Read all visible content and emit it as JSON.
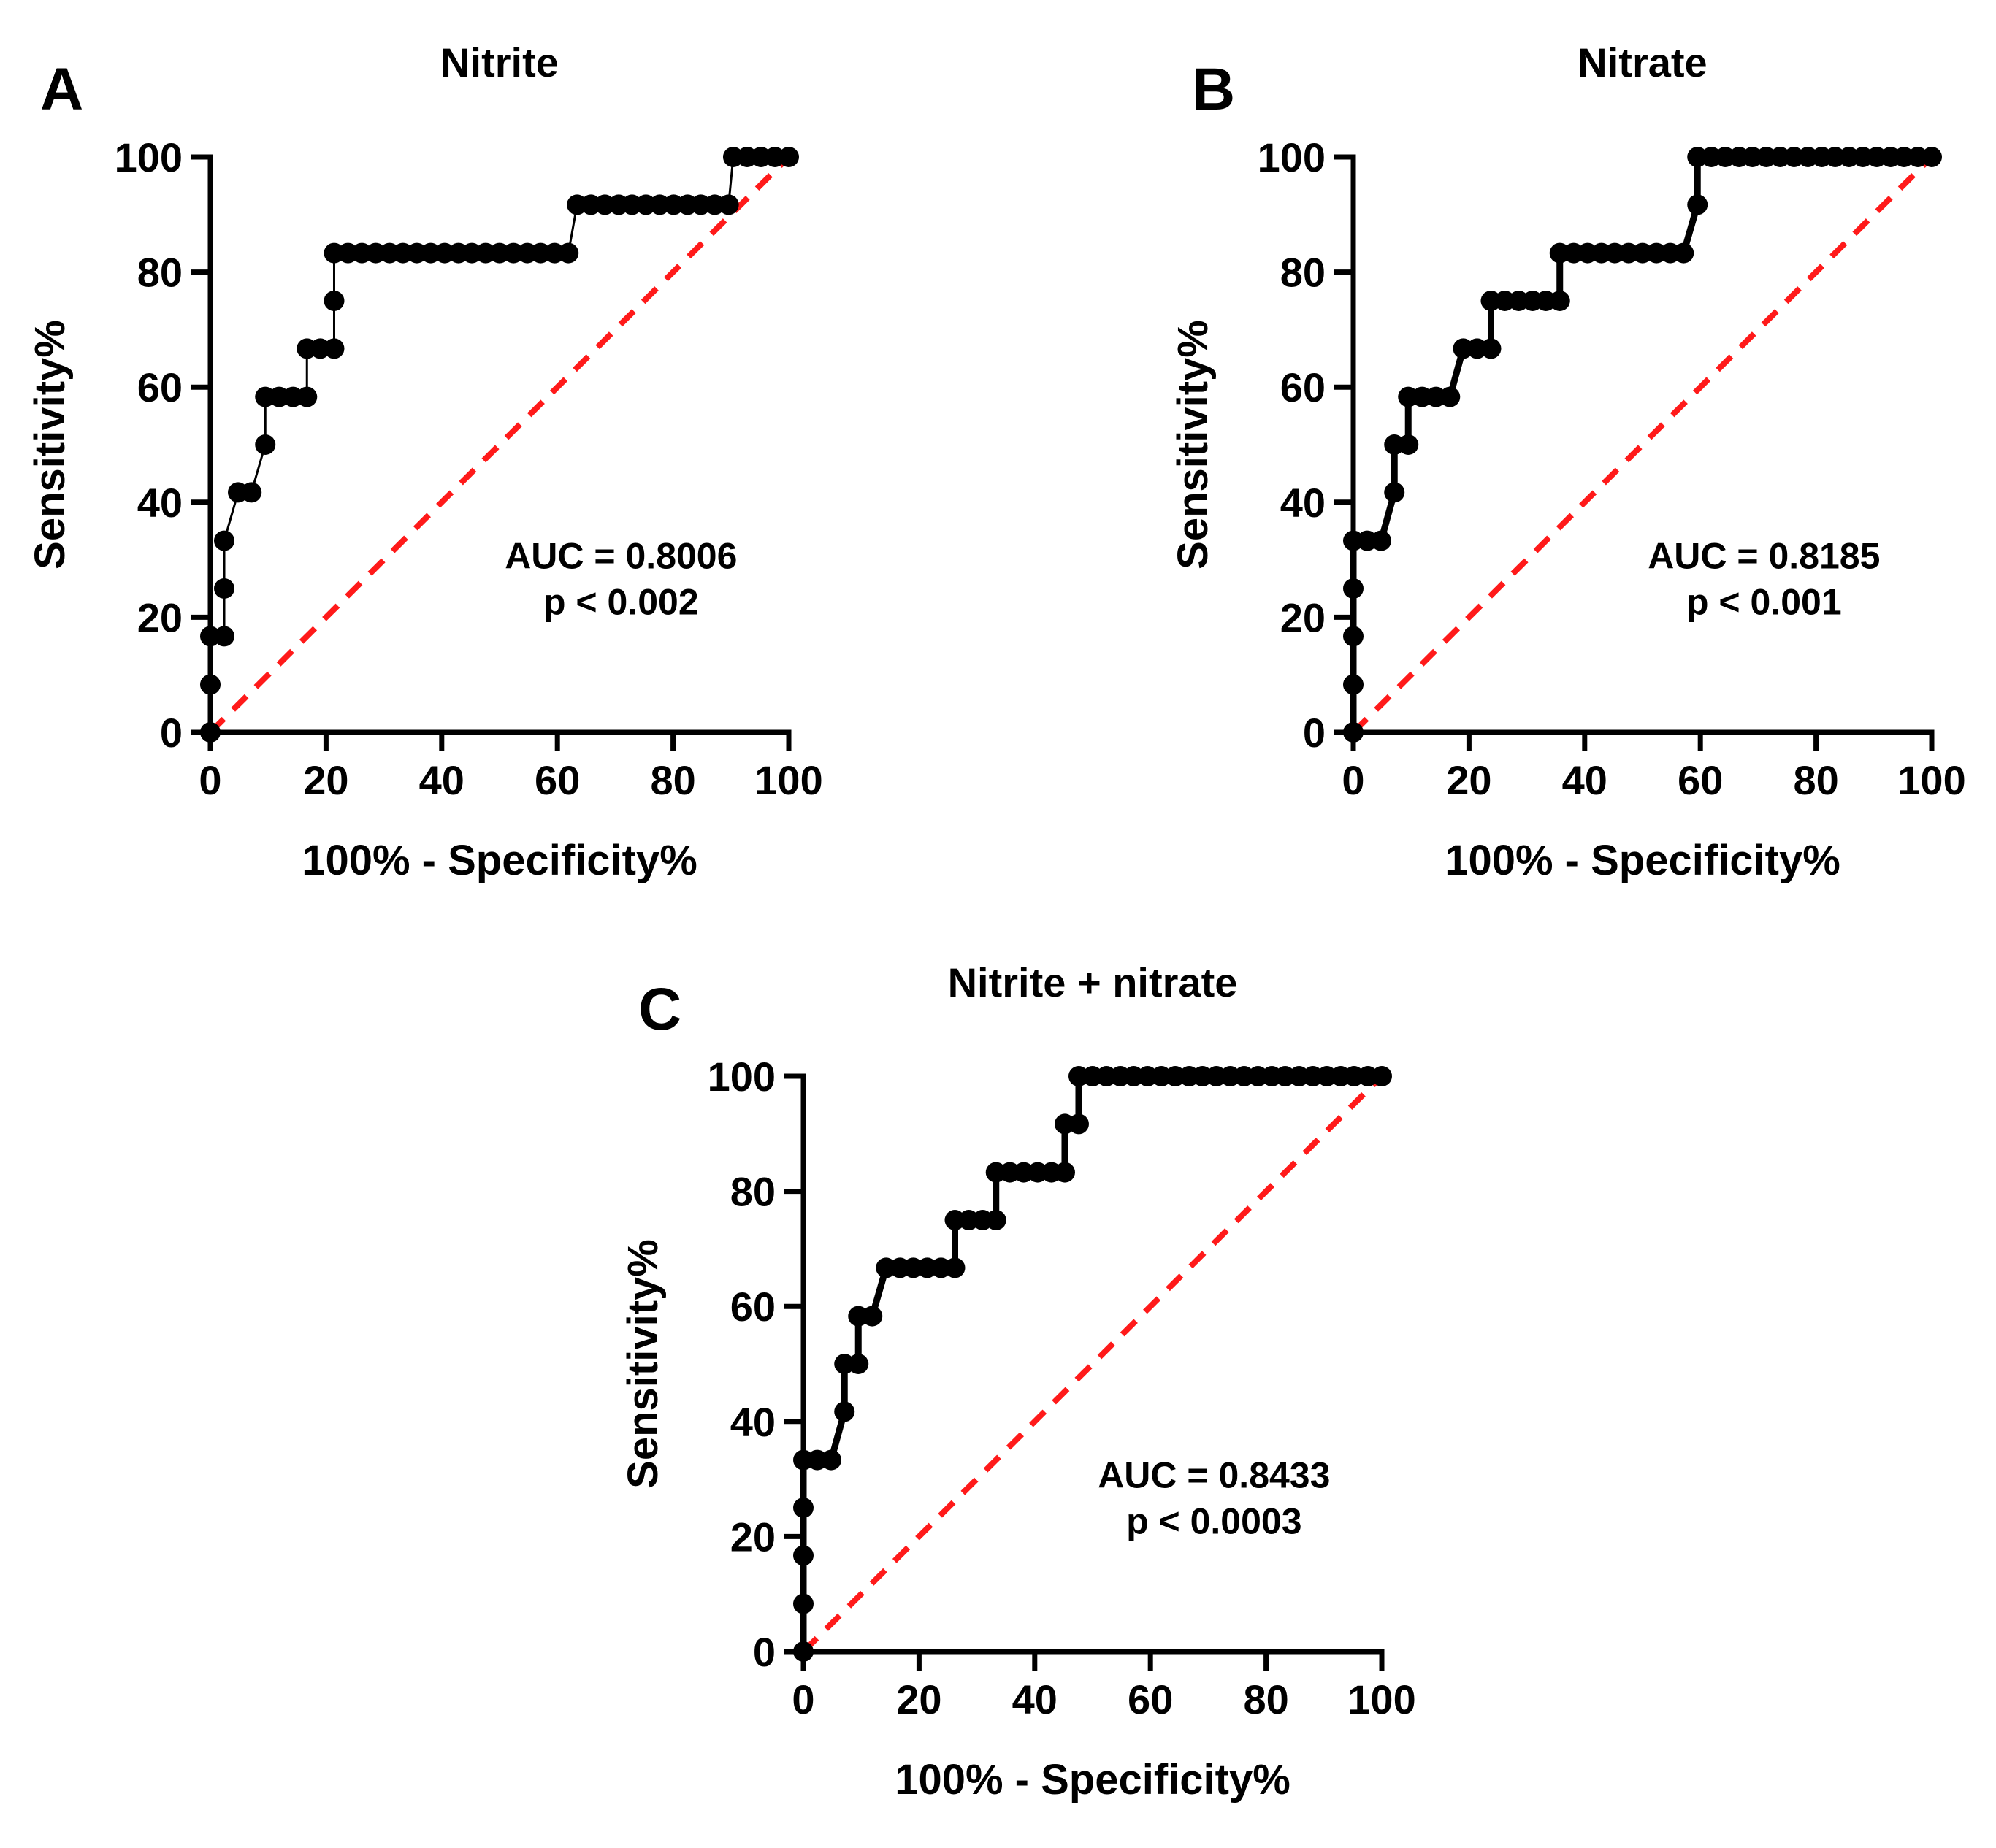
{
  "chart_data": [
    {
      "panel_letter": "A",
      "type": "line",
      "title": "Nitrite",
      "xlabel": "100% - Specificity%",
      "ylabel": "Sensitivity%",
      "xlim": [
        0,
        100
      ],
      "ylim": [
        0,
        100
      ],
      "xticks": [
        "0",
        "20",
        "40",
        "60",
        "80",
        "100"
      ],
      "yticks": [
        "0",
        "20",
        "40",
        "60",
        "80",
        "100"
      ],
      "auc_text": "AUC = 0.8006",
      "p_text": "p < 0.002",
      "line_style": "thin",
      "reference_line": {
        "from": [
          0,
          0
        ],
        "to": [
          100,
          100
        ],
        "color": "#ff1a1a",
        "dashed": true
      },
      "series": [
        {
          "name": "ROC",
          "color": "#000000",
          "x": [
            0,
            0,
            0,
            2.4,
            2.4,
            2.4,
            4.8,
            7.1,
            9.5,
            9.5,
            11.9,
            14.3,
            16.7,
            16.7,
            19.0,
            21.4,
            21.4,
            21.4,
            23.8,
            26.2,
            28.6,
            31.0,
            33.3,
            35.7,
            38.1,
            40.5,
            42.9,
            45.2,
            47.6,
            50.0,
            52.4,
            54.8,
            57.1,
            59.5,
            61.9,
            63.4,
            65.8,
            68.2,
            70.6,
            72.9,
            75.3,
            77.7,
            80.1,
            82.5,
            84.8,
            87.2,
            89.6,
            90.4,
            92.8,
            95.2,
            97.6,
            100
          ],
          "y": [
            0,
            8.3,
            16.7,
            16.7,
            25.0,
            33.3,
            41.7,
            41.7,
            50.0,
            58.3,
            58.3,
            58.3,
            58.3,
            66.7,
            66.7,
            66.7,
            75.0,
            83.3,
            83.3,
            83.3,
            83.3,
            83.3,
            83.3,
            83.3,
            83.3,
            83.3,
            83.3,
            83.3,
            83.3,
            83.3,
            83.3,
            83.3,
            83.3,
            83.3,
            83.3,
            91.7,
            91.7,
            91.7,
            91.7,
            91.7,
            91.7,
            91.7,
            91.7,
            91.7,
            91.7,
            91.7,
            91.7,
            100,
            100,
            100,
            100,
            100
          ]
        }
      ]
    },
    {
      "panel_letter": "B",
      "type": "line",
      "title": "Nitrate",
      "xlabel": "100% - Specificity%",
      "ylabel": "Sensitivity%",
      "xlim": [
        0,
        100
      ],
      "ylim": [
        0,
        100
      ],
      "xticks": [
        "0",
        "20",
        "40",
        "60",
        "80",
        "100"
      ],
      "yticks": [
        "0",
        "20",
        "40",
        "60",
        "80",
        "100"
      ],
      "auc_text": "AUC = 0.8185",
      "p_text": "p < 0.001",
      "line_style": "thick",
      "reference_line": {
        "from": [
          0,
          0
        ],
        "to": [
          100,
          100
        ],
        "color": "#ff1a1a",
        "dashed": true
      },
      "series": [
        {
          "name": "ROC",
          "color": "#000000",
          "x": [
            0,
            0,
            0,
            0,
            0,
            2.4,
            4.8,
            7.1,
            7.1,
            9.5,
            9.5,
            11.9,
            14.3,
            16.7,
            19.0,
            21.4,
            23.8,
            23.8,
            26.2,
            28.6,
            31.0,
            33.3,
            35.7,
            35.7,
            38.1,
            40.5,
            42.9,
            45.2,
            47.6,
            50.0,
            52.4,
            54.8,
            57.1,
            59.5,
            59.5,
            61.9,
            64.3,
            66.7,
            69.0,
            71.4,
            73.8,
            76.2,
            78.6,
            81.0,
            83.3,
            85.7,
            88.1,
            90.5,
            92.9,
            95.2,
            97.6,
            100
          ],
          "y": [
            0,
            8.3,
            16.7,
            25.0,
            33.3,
            33.3,
            33.3,
            41.7,
            50.0,
            50.0,
            58.3,
            58.3,
            58.3,
            58.3,
            66.7,
            66.7,
            66.7,
            75.0,
            75.0,
            75.0,
            75.0,
            75.0,
            75.0,
            83.3,
            83.3,
            83.3,
            83.3,
            83.3,
            83.3,
            83.3,
            83.3,
            83.3,
            83.3,
            91.7,
            100,
            100,
            100,
            100,
            100,
            100,
            100,
            100,
            100,
            100,
            100,
            100,
            100,
            100,
            100,
            100,
            100,
            100
          ]
        }
      ]
    },
    {
      "panel_letter": "C",
      "type": "line",
      "title": "Nitrite + nitrate",
      "xlabel": "100% - Specificity%",
      "ylabel": "Sensitivity%",
      "xlim": [
        0,
        100
      ],
      "ylim": [
        0,
        100
      ],
      "xticks": [
        "0",
        "20",
        "40",
        "60",
        "80",
        "100"
      ],
      "yticks": [
        "0",
        "20",
        "40",
        "60",
        "80",
        "100"
      ],
      "auc_text": "AUC = 0.8433",
      "p_text": "p < 0.0003",
      "line_style": "thick",
      "reference_line": {
        "from": [
          0,
          0
        ],
        "to": [
          100,
          100
        ],
        "color": "#ff1a1a",
        "dashed": true
      },
      "series": [
        {
          "name": "ROC",
          "color": "#000000",
          "x": [
            0,
            0,
            0,
            0,
            0,
            2.4,
            4.8,
            7.1,
            7.1,
            9.5,
            9.5,
            11.9,
            14.3,
            16.7,
            19.0,
            21.4,
            23.8,
            26.2,
            26.2,
            28.6,
            31.0,
            33.3,
            33.3,
            35.7,
            38.1,
            40.5,
            42.9,
            45.2,
            45.2,
            47.6,
            47.6,
            50.0,
            52.4,
            54.8,
            57.1,
            59.5,
            61.9,
            64.3,
            66.7,
            69.0,
            71.4,
            73.8,
            76.2,
            78.6,
            81.0,
            83.3,
            85.7,
            88.1,
            90.5,
            92.9,
            95.2,
            97.6,
            100
          ],
          "y": [
            0,
            8.3,
            16.7,
            25.0,
            33.3,
            33.3,
            33.3,
            41.7,
            50.0,
            50.0,
            58.3,
            58.3,
            66.7,
            66.7,
            66.7,
            66.7,
            66.7,
            66.7,
            75.0,
            75.0,
            75.0,
            75.0,
            83.3,
            83.3,
            83.3,
            83.3,
            83.3,
            83.3,
            91.7,
            91.7,
            100,
            100,
            100,
            100,
            100,
            100,
            100,
            100,
            100,
            100,
            100,
            100,
            100,
            100,
            100,
            100,
            100,
            100,
            100,
            100,
            100,
            100,
            100
          ]
        }
      ]
    }
  ]
}
